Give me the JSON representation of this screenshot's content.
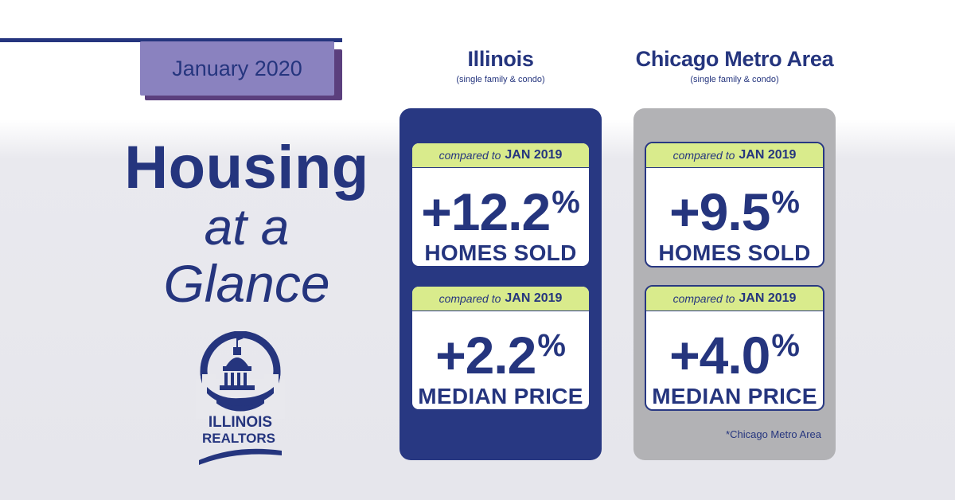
{
  "header": {
    "date_label": "January 2020"
  },
  "headline": {
    "line1": "Housing",
    "line2": "at a",
    "line3": "Glance"
  },
  "logo": {
    "line1": "ILLINOIS",
    "line2": "REALTORS"
  },
  "columns": [
    {
      "title": "Illinois",
      "subtitle": "(single family & condo)",
      "stats": [
        {
          "compare_prefix": "compared to",
          "compare_period": "JAN 2019",
          "value": "+12.2",
          "unit": "%",
          "metric": "HOMES SOLD"
        },
        {
          "compare_prefix": "compared to",
          "compare_period": "JAN 2019",
          "value": "+2.2",
          "unit": "%",
          "metric": "MEDIAN PRICE"
        }
      ]
    },
    {
      "title": "Chicago Metro Area",
      "subtitle": "(single family & condo)",
      "stats": [
        {
          "compare_prefix": "compared to",
          "compare_period": "JAN 2019",
          "value": "+9.5",
          "unit": "%",
          "metric": "HOMES SOLD"
        },
        {
          "compare_prefix": "compared to",
          "compare_period": "JAN 2019",
          "value": "+4.0",
          "unit": "%",
          "metric": "MEDIAN PRICE"
        }
      ],
      "footnote": "*Chicago Metro Area"
    }
  ],
  "colors": {
    "navy": "#25357e",
    "lavender": "#8a82bf",
    "lime": "#d9eb8c",
    "gray_panel": "#b2b2b5"
  }
}
